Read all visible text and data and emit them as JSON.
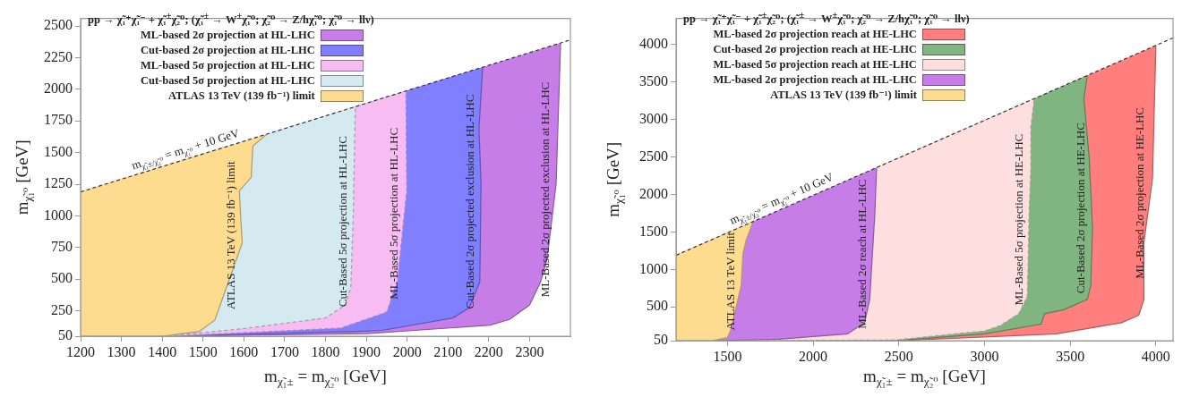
{
  "chart_data": [
    {
      "type": "area",
      "xlabel": "m$_{χ̃₁±}$ = m$_{χ̃₂⁰}$ [GeV]",
      "ylabel": "m$_{χ̃₁⁰}$ [GeV]",
      "legend_title": "pp → χ̃₁⁺χ̃₁⁻ + χ̃₁$^{±}$χ̃₂⁰; (χ̃₁$^{±}$ → W$^{±}$χ̃₁⁰; χ̃₂⁰ → Z/hχ̃₁⁰; χ̃₁⁰ → llν)",
      "xlim": [
        1200,
        2400
      ],
      "ylim": [
        50,
        2560
      ],
      "xticks": [
        1200,
        1300,
        1400,
        1500,
        1600,
        1700,
        1800,
        1900,
        2000,
        2100,
        2200,
        2300
      ],
      "yticks": [
        50,
        250,
        500,
        750,
        1000,
        1250,
        1500,
        1750,
        2000,
        2250,
        2500
      ],
      "grid": false,
      "legend": "top left",
      "marker": "none",
      "series": [
        {
          "name": "ML-based 2σ projection at HL-LHC",
          "color": "#c77de8",
          "line_style": "solid",
          "x": [
            1200,
            1200,
            1440,
            1900,
            2203,
            2251,
            2300,
            2327,
            2343,
            2365,
            2376
          ],
          "values": [
            1190,
            50,
            50,
            70,
            137,
            182,
            297,
            479,
            662,
            1255,
            2366
          ]
        },
        {
          "name": "Cut-based 2σ projection at HL-LHC",
          "color": "#7f7fff",
          "line_style": "solid",
          "x": [
            1200,
            1200,
            1430,
            1880,
            1939,
            2112,
            2152,
            2178,
            2181,
            2176,
            2185
          ],
          "values": [
            1190,
            50,
            50,
            88,
            96,
            194,
            274,
            479,
            1255,
            1689,
            2175
          ]
        },
        {
          "name": "ML-based 5σ projection at HL-LHC",
          "color": "#f7bdf2",
          "line_style": "dashed",
          "x": [
            1200,
            1200,
            1420,
            1837,
            1950,
            1976,
            1999,
            1997
          ],
          "values": [
            1190,
            50,
            50,
            114,
            240,
            479,
            1198,
            1987
          ]
        },
        {
          "name": "Cut-based 5σ projection at HL-LHC",
          "color": "#d4e9f0",
          "line_style": "dashed",
          "x": [
            1200,
            1200,
            1410,
            1600,
            1800,
            1848,
            1862,
            1868,
            1873
          ],
          "values": [
            1190,
            50,
            50,
            110,
            194,
            297,
            434,
            1000,
            1863
          ]
        },
        {
          "name": "ATLAS 13 TeV (139 fb⁻¹) limit",
          "color": "#fddb8f",
          "line_style": "solid",
          "x": [
            1200,
            1200,
            1400,
            1448,
            1490,
            1529,
            1596,
            1592,
            1589,
            1618,
            1622,
            1657
          ],
          "values": [
            1190,
            50,
            50,
            70,
            86,
            178,
            787,
            1000,
            1198,
            1305,
            1552,
            1647
          ]
        },
        {
          "type": "line",
          "color": "#333333",
          "line_style": "dashed",
          "x": [
            1200,
            2400
          ],
          "values": [
            1190,
            2390
          ]
        }
      ],
      "annotations": [
        "m$_{χ̃₁±/χ̃₂⁰}$ = m$_{χ̃₁⁰}$ + 10 GeV",
        "ATLAS 13 TeV (139 fb⁻¹) limit",
        "Cut-Based 5σ projection at HL-LHC",
        "ML-Based 5σ projection at HL-LHC",
        "Cut-Based 2σ projected exclusion at HL-LHC",
        "ML-Based 2σ projected exclusion at HL-LHC"
      ]
    },
    {
      "type": "area",
      "xlabel": "m$_{χ̃₁±}$ = m$_{χ̃₂⁰}$ [GeV]",
      "ylabel": "m$_{χ̃₁⁰}$ [GeV]",
      "legend_title": "pp → χ̃₁⁺χ̃₁⁻ + χ̃₁$^{±}$χ̃₂⁰; (χ̃₁$^{±}$ → W$^{±}$χ̃₁⁰; χ̃₂⁰ → Z/hχ̃₁⁰; χ̃₁⁰ → llν)",
      "xlim": [
        1200,
        4100
      ],
      "ylim": [
        50,
        4350
      ],
      "xticks": [
        1500,
        2000,
        2500,
        3000,
        3500,
        4000
      ],
      "yticks": [
        50,
        500,
        1000,
        1500,
        2000,
        2500,
        3000,
        3500,
        4000
      ],
      "grid": false,
      "legend": "top left",
      "marker": "none",
      "series": [
        {
          "name": "ML-based 2σ projection reach at HE-LHC",
          "color": "#ff7f7f",
          "line_style": "solid",
          "x": [
            1200,
            1200,
            2500,
            3420,
            3800,
            3900,
            3930,
            3930,
            3980,
            4000
          ],
          "values": [
            1190,
            50,
            50,
            140,
            290,
            390,
            600,
            1360,
            2210,
            3990
          ]
        },
        {
          "name": "Cut-based 2σ projection reach at HE-LHC",
          "color": "#80b480",
          "line_style": "solid",
          "x": [
            1200,
            1200,
            2480,
            3000,
            3330,
            3350,
            3460,
            3600,
            3620,
            3630,
            3610,
            3580,
            3600
          ],
          "values": [
            1190,
            50,
            50,
            140,
            270,
            410,
            460,
            600,
            790,
            1560,
            2510,
            3280,
            3590
          ]
        },
        {
          "name": "ML-based 5σ projection reach at HE-LHC",
          "color": "#fddfe0",
          "line_style": "dashed",
          "x": [
            1200,
            1200,
            1780,
            2480,
            3000,
            3090,
            3200,
            3250,
            3260,
            3270,
            3270,
            3290
          ],
          "values": [
            1190,
            50,
            50,
            60,
            180,
            250,
            410,
            640,
            1750,
            2360,
            2900,
            3280
          ]
        },
        {
          "name": "ML-based 2σ projection reach at HL-LHC",
          "color": "#c77de8",
          "line_style": "solid",
          "x": [
            1200,
            1200,
            1420,
            1800,
            2200,
            2300,
            2330,
            2360,
            2370
          ],
          "values": [
            1190,
            50,
            50,
            70,
            140,
            290,
            600,
            1750,
            2360
          ]
        },
        {
          "name": "ATLAS 13 TeV (139 fb⁻¹) limit",
          "color": "#fddb8f",
          "line_style": "solid",
          "x": [
            1200,
            1200,
            1410,
            1500,
            1520,
            1580,
            1590,
            1610,
            1650
          ],
          "values": [
            1190,
            50,
            50,
            90,
            200,
            790,
            1210,
            1400,
            1640
          ]
        },
        {
          "type": "line",
          "color": "#333333",
          "line_style": "dashed",
          "x": [
            1200,
            4100
          ],
          "values": [
            1190,
            4090
          ]
        }
      ],
      "annotations": [
        "m$_{χ̃₁±/χ̃₂⁰}$ = m$_{χ̃₁⁰}$ + 10 GeV",
        "ATLAS 13 TeV limit",
        "ML-Based 2σ reach at HL-LHC",
        "ML-Based 5σ projection at HE-LHC",
        "Cut-Based 2σ projection at HE-LHC",
        "ML-Based 2σ projection at HE-LHC"
      ]
    }
  ]
}
